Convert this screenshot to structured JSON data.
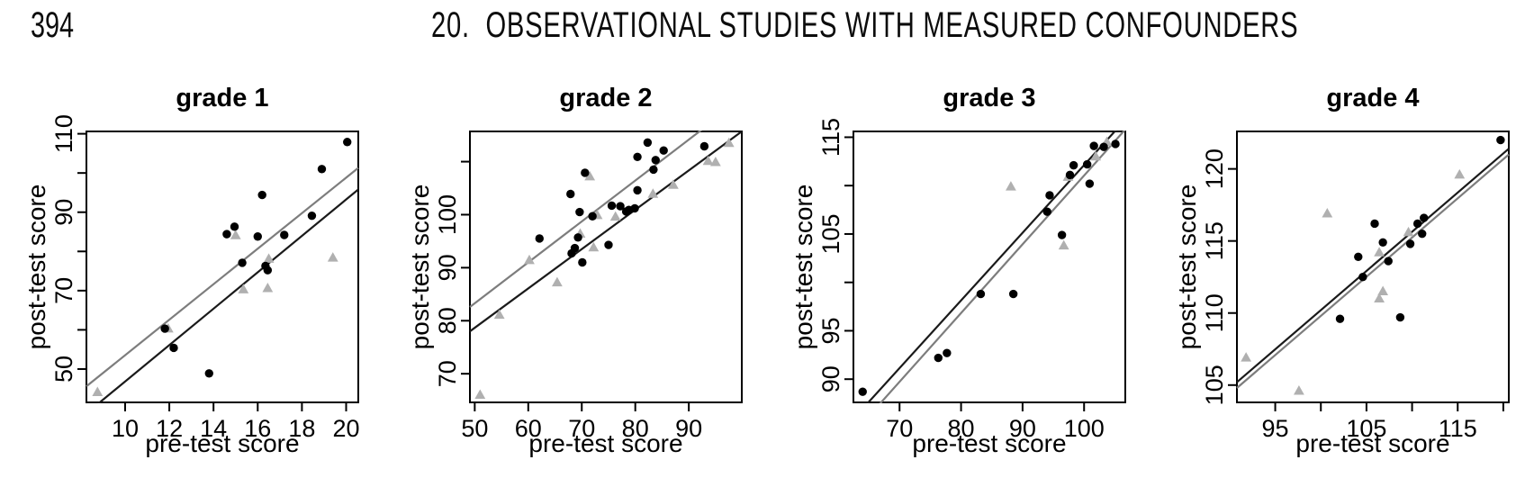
{
  "header": {
    "page_number": "394",
    "chapter_title": "20.  OBSERVATIONAL STUDIES WITH MEASURED CONFOUNDERS"
  },
  "colors": {
    "treated_point": "#000000",
    "control_point": "#b0b0b0",
    "treated_line": "#1a1a1a",
    "control_line": "#7d7d7d",
    "axis": "#000000"
  },
  "chart_data": [
    {
      "type": "scatter",
      "title": "grade 1",
      "xlabel": "pre-test score",
      "ylabel": "post-test score",
      "xlim": [
        8.25,
        20.55
      ],
      "ylim": [
        41.5,
        110.6
      ],
      "grid": false,
      "legend": "none",
      "xticks": [
        {
          "v": 10,
          "label": "10"
        },
        {
          "v": 12,
          "label": "12"
        },
        {
          "v": 14,
          "label": "14"
        },
        {
          "v": 16,
          "label": "16"
        },
        {
          "v": 18,
          "label": "18"
        },
        {
          "v": 20,
          "label": "20"
        }
      ],
      "yticks": [
        {
          "v": 50,
          "label": "50"
        },
        {
          "v": 60,
          "label": ""
        },
        {
          "v": 70,
          "label": "70"
        },
        {
          "v": 80,
          "label": ""
        },
        {
          "v": 90,
          "label": "90"
        },
        {
          "v": 100,
          "label": ""
        },
        {
          "v": 110,
          "label": "110"
        }
      ],
      "series": [
        {
          "name": "control",
          "marker": "triangle",
          "points": [
            [
              8.75,
              44.1
            ],
            [
              11.95,
              60.3
            ],
            [
              15.0,
              84.1
            ],
            [
              15.35,
              70.3
            ],
            [
              16.45,
              70.6
            ],
            [
              16.5,
              78.1
            ],
            [
              19.4,
              78.4
            ]
          ]
        },
        {
          "name": "treated",
          "marker": "circle",
          "points": [
            [
              11.8,
              60.3
            ],
            [
              12.2,
              55.4
            ],
            [
              13.8,
              48.9
            ],
            [
              14.6,
              84.4
            ],
            [
              14.95,
              86.3
            ],
            [
              15.3,
              77.1
            ],
            [
              16.0,
              83.8
            ],
            [
              16.2,
              94.4
            ],
            [
              16.35,
              76.3
            ],
            [
              16.45,
              75.2
            ],
            [
              17.2,
              84.2
            ],
            [
              18.45,
              89.1
            ],
            [
              18.9,
              101.0
            ],
            [
              20.05,
              107.9
            ]
          ]
        }
      ],
      "lines": [
        {
          "name": "control-fit",
          "from": [
            8.25,
            45.6
          ],
          "to": [
            20.55,
            101.3
          ]
        },
        {
          "name": "treated-fit",
          "from": [
            8.25,
            38.7
          ],
          "to": [
            20.55,
            95.8
          ]
        }
      ]
    },
    {
      "type": "scatter",
      "title": "grade 2",
      "xlabel": "pre-test score",
      "ylabel": "post-test score",
      "xlim": [
        49.1,
        99.9
      ],
      "ylim": [
        64.6,
        115.7
      ],
      "grid": false,
      "legend": "none",
      "xticks": [
        {
          "v": 50,
          "label": "50"
        },
        {
          "v": 60,
          "label": "60"
        },
        {
          "v": 70,
          "label": "70"
        },
        {
          "v": 80,
          "label": "80"
        },
        {
          "v": 90,
          "label": "90"
        }
      ],
      "yticks": [
        {
          "v": 70,
          "label": "70"
        },
        {
          "v": 80,
          "label": "80"
        },
        {
          "v": 90,
          "label": "90"
        },
        {
          "v": 100,
          "label": "100"
        },
        {
          "v": 110,
          "label": ""
        }
      ],
      "series": [
        {
          "name": "control",
          "marker": "triangle",
          "points": [
            [
              51.0,
              66.0
            ],
            [
              54.6,
              81.1
            ],
            [
              60.2,
              91.4
            ],
            [
              65.4,
              87.2
            ],
            [
              69.7,
              96.4
            ],
            [
              71.5,
              107.2
            ],
            [
              72.2,
              93.8
            ],
            [
              72.9,
              99.9
            ],
            [
              76.3,
              99.6
            ],
            [
              83.3,
              103.9
            ],
            [
              87.1,
              105.6
            ],
            [
              93.6,
              110.1
            ],
            [
              95.0,
              109.9
            ],
            [
              97.5,
              113.5
            ]
          ]
        },
        {
          "name": "treated",
          "marker": "circle",
          "points": [
            [
              62.1,
              95.5
            ],
            [
              67.9,
              103.9
            ],
            [
              68.1,
              92.7
            ],
            [
              68.7,
              93.7
            ],
            [
              69.3,
              95.7
            ],
            [
              69.6,
              100.5
            ],
            [
              70.1,
              91.0
            ],
            [
              70.6,
              107.9
            ],
            [
              72.0,
              99.7
            ],
            [
              75.0,
              94.3
            ],
            [
              75.6,
              101.7
            ],
            [
              77.2,
              101.6
            ],
            [
              78.3,
              100.6
            ],
            [
              78.8,
              100.9
            ],
            [
              79.9,
              101.2
            ],
            [
              80.4,
              104.6
            ],
            [
              80.4,
              110.9
            ],
            [
              82.3,
              113.6
            ],
            [
              83.4,
              108.5
            ],
            [
              83.8,
              110.3
            ],
            [
              85.3,
              112.1
            ],
            [
              92.9,
              112.9
            ]
          ]
        }
      ],
      "lines": [
        {
          "name": "control-fit",
          "from": [
            49.1,
            82.6
          ],
          "to": [
            99.9,
            121.8
          ]
        },
        {
          "name": "treated-fit",
          "from": [
            49.1,
            78.0
          ],
          "to": [
            99.9,
            115.7
          ]
        }
      ]
    },
    {
      "type": "scatter",
      "title": "grade 3",
      "xlabel": "pre-test score",
      "ylabel": "post-test score",
      "xlim": [
        62.5,
        106.7
      ],
      "ylim": [
        87.6,
        115.6
      ],
      "grid": false,
      "legend": "none",
      "xticks": [
        {
          "v": 70,
          "label": "70"
        },
        {
          "v": 80,
          "label": "80"
        },
        {
          "v": 90,
          "label": "90"
        },
        {
          "v": 100,
          "label": "100"
        }
      ],
      "yticks": [
        {
          "v": 90,
          "label": "90"
        },
        {
          "v": 95,
          "label": "95"
        },
        {
          "v": 100,
          "label": ""
        },
        {
          "v": 105,
          "label": "105"
        },
        {
          "v": 110,
          "label": ""
        },
        {
          "v": 115,
          "label": "115"
        }
      ],
      "series": [
        {
          "name": "control",
          "marker": "triangle",
          "points": [
            [
              88.1,
              109.9
            ],
            [
              96.7,
              103.8
            ],
            [
              97.4,
              110.9
            ],
            [
              101.9,
              113.0
            ],
            [
              103.7,
              114.5
            ]
          ]
        },
        {
          "name": "treated",
          "marker": "circle",
          "points": [
            [
              64.0,
              88.7
            ],
            [
              76.3,
              92.2
            ],
            [
              77.7,
              92.7
            ],
            [
              83.2,
              98.8
            ],
            [
              88.5,
              98.8
            ],
            [
              94.0,
              107.3
            ],
            [
              94.4,
              109.0
            ],
            [
              96.4,
              104.9
            ],
            [
              97.7,
              111.1
            ],
            [
              98.3,
              112.1
            ],
            [
              100.5,
              112.2
            ],
            [
              100.9,
              110.2
            ],
            [
              101.6,
              114.1
            ],
            [
              103.2,
              114.0
            ],
            [
              105.1,
              114.3
            ]
          ]
        }
      ],
      "lines": [
        {
          "name": "control-fit",
          "from": [
            62.5,
            84.4
          ],
          "to": [
            106.7,
            115.8
          ]
        },
        {
          "name": "treated-fit",
          "from": [
            62.5,
            85.9
          ],
          "to": [
            106.7,
            116.8
          ]
        }
      ]
    },
    {
      "type": "scatter",
      "title": "grade 4",
      "xlabel": "pre-test score",
      "ylabel": "post-test score",
      "xlim": [
        90.8,
        120.6
      ],
      "ylim": [
        103.8,
        122.6
      ],
      "grid": false,
      "legend": "none",
      "xticks": [
        {
          "v": 95,
          "label": "95"
        },
        {
          "v": 100,
          "label": ""
        },
        {
          "v": 105,
          "label": "105"
        },
        {
          "v": 110,
          "label": ""
        },
        {
          "v": 115,
          "label": "115"
        },
        {
          "v": 120,
          "label": ""
        }
      ],
      "yticks": [
        {
          "v": 105,
          "label": "105"
        },
        {
          "v": 110,
          "label": "110"
        },
        {
          "v": 115,
          "label": "115"
        },
        {
          "v": 120,
          "label": "120"
        }
      ],
      "series": [
        {
          "name": "control",
          "marker": "triangle",
          "points": [
            [
              91.8,
              106.9
            ],
            [
              97.6,
              104.6
            ],
            [
              100.7,
              116.9
            ],
            [
              106.4,
              111.0
            ],
            [
              106.8,
              111.5
            ],
            [
              106.4,
              114.2
            ],
            [
              109.6,
              115.6
            ],
            [
              115.2,
              119.6
            ]
          ]
        },
        {
          "name": "treated",
          "marker": "circle",
          "points": [
            [
              102.1,
              109.6
            ],
            [
              104.1,
              113.9
            ],
            [
              104.6,
              112.5
            ],
            [
              105.9,
              116.2
            ],
            [
              106.8,
              114.9
            ],
            [
              107.4,
              113.6
            ],
            [
              108.7,
              109.7
            ],
            [
              109.8,
              114.8
            ],
            [
              110.6,
              116.2
            ],
            [
              111.1,
              115.5
            ],
            [
              111.3,
              116.6
            ],
            [
              119.7,
              122.0
            ]
          ]
        }
      ],
      "lines": [
        {
          "name": "control-fit",
          "from": [
            90.8,
            104.8
          ],
          "to": [
            120.6,
            121.0
          ]
        },
        {
          "name": "treated-fit",
          "from": [
            90.8,
            105.2
          ],
          "to": [
            120.6,
            121.4
          ]
        }
      ]
    }
  ]
}
